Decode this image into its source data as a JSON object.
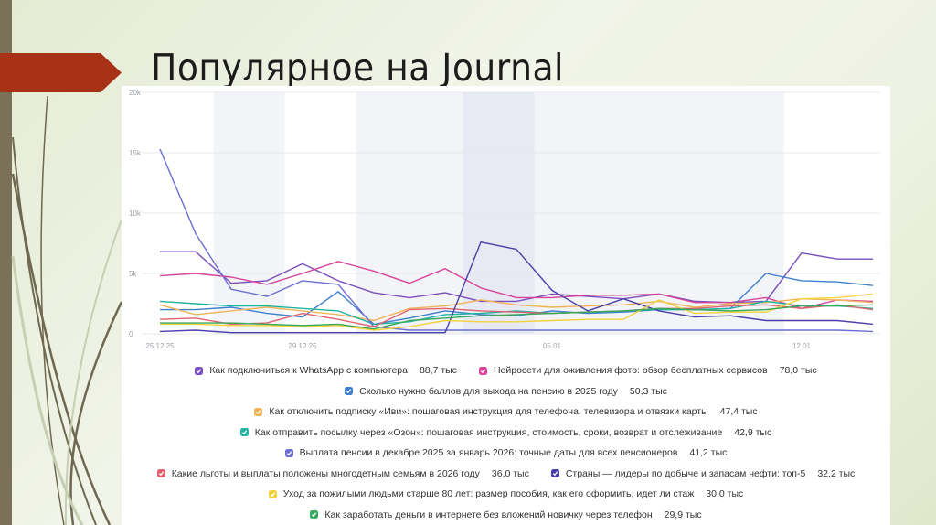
{
  "slide": {
    "title": "Популярное на Journal",
    "accent_color": "#a83216",
    "sidebar_color": "#7a7158"
  },
  "chart_data": {
    "type": "line",
    "title": "",
    "xlabel": "",
    "ylabel": "",
    "ylim": [
      0,
      20000
    ],
    "y_ticks": [
      "0",
      "5k",
      "10k",
      "15k",
      "20k"
    ],
    "x_tick_labels": [
      {
        "index": 0,
        "label": "25.12.25"
      },
      {
        "index": 4,
        "label": "29.12.25"
      },
      {
        "index": 11,
        "label": "05.01"
      },
      {
        "index": 18,
        "label": "12.01"
      }
    ],
    "x": [
      "25.12",
      "26.12",
      "27.12",
      "28.12",
      "29.12",
      "30.12",
      "31.12",
      "01.01",
      "02.01",
      "03.01",
      "04.01",
      "05.01",
      "06.01",
      "07.01",
      "08.01",
      "09.01",
      "10.01",
      "11.01",
      "12.01",
      "13.01",
      "14.01"
    ],
    "shaded_ranges": [
      {
        "from": 1.5,
        "to": 3.5,
        "shade": "light"
      },
      {
        "from": 5.5,
        "to": 8.5,
        "shade": "light"
      },
      {
        "from": 8.5,
        "to": 10.5,
        "shade": "dark"
      },
      {
        "from": 10.5,
        "to": 17.5,
        "shade": "light"
      }
    ],
    "grid": true,
    "legend_position": "bottom",
    "series": [
      {
        "name": "Как подключиться к WhatsApp с компьютера",
        "total": "88,7 тыс",
        "color": "#7b4fbf",
        "values": [
          6800,
          6800,
          4200,
          4400,
          5800,
          4400,
          3400,
          3000,
          3400,
          2700,
          2700,
          3300,
          3100,
          2900,
          3300,
          2700,
          2600,
          2700,
          6700,
          6200,
          6200
        ]
      },
      {
        "name": "Нейросети для оживления фото: обзор бесплатных сервисов",
        "total": "78,0 тыс",
        "color": "#d6449a",
        "values": [
          4800,
          5000,
          4700,
          4100,
          5000,
          6000,
          5200,
          4200,
          5400,
          3800,
          3000,
          3000,
          3200,
          3200,
          3300,
          2600,
          2600,
          3000,
          2100,
          2800,
          2700
        ]
      },
      {
        "name": "Сколько нужно баллов для выхода на пенсию в 2025 году",
        "total": "50,3 тыс",
        "color": "#3f7fd0",
        "values": [
          2000,
          2000,
          2200,
          1700,
          1400,
          3500,
          800,
          1300,
          1900,
          1600,
          1500,
          1900,
          1700,
          1800,
          2000,
          2000,
          2100,
          5000,
          4400,
          4300,
          4000
        ]
      },
      {
        "name": "Как отключить подписку «Иви»: пошаговая инструкция для телефона, телевизора и отвязки карты",
        "total": "47,4 тыс",
        "color": "#f0b35a",
        "values": [
          2400,
          1600,
          1900,
          2200,
          1900,
          1600,
          1100,
          2100,
          2300,
          2800,
          2400,
          2200,
          2300,
          2400,
          2700,
          2200,
          2500,
          2600,
          2900,
          2800,
          2600
        ]
      },
      {
        "name": "Как отправить посылку через «Озон»: пошаговая инструкция, стоимость, сроки, возврат и отслеживание",
        "total": "42,9 тыс",
        "color": "#22b3a0",
        "values": [
          2700,
          2500,
          2300,
          2300,
          2100,
          1900,
          800,
          1000,
          1600,
          1700,
          1900,
          1700,
          1800,
          1900,
          2000,
          2000,
          2100,
          2700,
          2300,
          2300,
          2100
        ]
      },
      {
        "name": "Выплата пенсии в декабре 2025 за январь 2026: точные даты для всех пенсионеров",
        "total": "41,2 тыс",
        "color": "#6a6fd0",
        "values": [
          15300,
          8300,
          3700,
          3100,
          4400,
          4100,
          600,
          300,
          300,
          300,
          300,
          300,
          300,
          300,
          300,
          300,
          300,
          300,
          300,
          300,
          200
        ]
      },
      {
        "name": "Какие льготы и выплаты положены многодетным семьям в 2026 году",
        "total": "36,0 тыс",
        "color": "#e0626f",
        "values": [
          1200,
          1300,
          800,
          900,
          1700,
          1200,
          600,
          2000,
          2100,
          1900,
          1800,
          1700,
          1800,
          1900,
          2100,
          2100,
          2300,
          2400,
          2100,
          2400,
          2000
        ]
      },
      {
        "name": "Страны — лидеры по добыче и запасам нефти: топ-5",
        "total": "32,2 тыс",
        "color": "#4a3fa8",
        "values": [
          200,
          300,
          100,
          100,
          100,
          100,
          100,
          100,
          100,
          7600,
          7000,
          3600,
          1900,
          2900,
          1900,
          1400,
          1500,
          1100,
          1100,
          1100,
          800
        ]
      },
      {
        "name": "Уход за пожилыми людьми старше 80 лет: размер пособия, как его оформить, идет ли стаж",
        "total": "30,0 тыс",
        "color": "#f2d23c",
        "values": [
          800,
          800,
          700,
          700,
          600,
          700,
          300,
          600,
          1100,
          1000,
          1000,
          1100,
          1200,
          1200,
          2800,
          1700,
          1800,
          1800,
          2900,
          3000,
          3300
        ]
      },
      {
        "name": "Как заработать деньги в интернете без вложений новичку через телефон",
        "total": "29,9 тыс",
        "color": "#38a85a",
        "values": [
          900,
          900,
          900,
          800,
          700,
          800,
          400,
          1100,
          1300,
          1500,
          1600,
          1700,
          1800,
          1900,
          2100,
          2000,
          1900,
          2000,
          2300,
          2300,
          2400
        ]
      }
    ]
  },
  "legend": {
    "rows": [
      [
        0,
        1
      ],
      [
        2
      ],
      [
        3
      ],
      [
        4
      ],
      [
        5
      ],
      [
        6,
        7
      ],
      [
        8
      ],
      [
        9
      ]
    ]
  }
}
